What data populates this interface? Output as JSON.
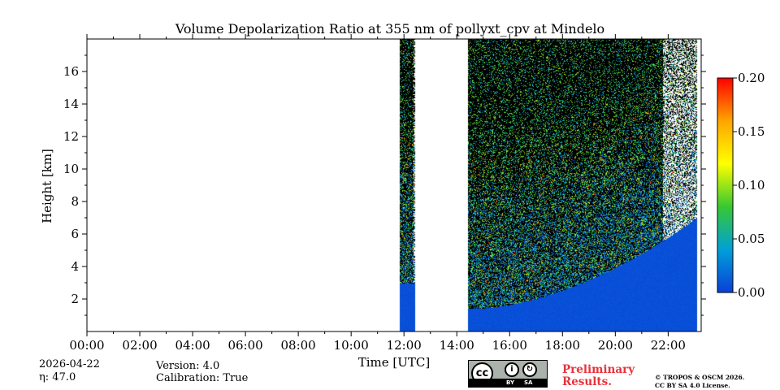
{
  "chart_data": {
    "type": "heatmap",
    "title": "Volume Depolarization Ratio at 355 nm of pollyxt_cpv at Mindelo",
    "xlabel": "Time [UTC]",
    "ylabel": "Height [km]",
    "xlim_hours": [
      0,
      23.25
    ],
    "ylim_km": [
      0,
      18
    ],
    "x_ticks": [
      {
        "value": 0,
        "label": "00:00"
      },
      {
        "value": 2,
        "label": "02:00"
      },
      {
        "value": 4,
        "label": "04:00"
      },
      {
        "value": 6,
        "label": "06:00"
      },
      {
        "value": 8,
        "label": "08:00"
      },
      {
        "value": 10,
        "label": "10:00"
      },
      {
        "value": 12,
        "label": "12:00"
      },
      {
        "value": 14,
        "label": "14:00"
      },
      {
        "value": 16,
        "label": "16:00"
      },
      {
        "value": 18,
        "label": "18:00"
      },
      {
        "value": 20,
        "label": "20:00"
      },
      {
        "value": 22,
        "label": "22:00"
      }
    ],
    "y_ticks": [
      {
        "value": 2,
        "label": "2"
      },
      {
        "value": 4,
        "label": "4"
      },
      {
        "value": 6,
        "label": "6"
      },
      {
        "value": 8,
        "label": "8"
      },
      {
        "value": 10,
        "label": "10"
      },
      {
        "value": 12,
        "label": "12"
      },
      {
        "value": 14,
        "label": "14"
      },
      {
        "value": 16,
        "label": "16"
      }
    ],
    "colorbar": {
      "range": [
        0.0,
        0.2
      ],
      "ticks": [
        {
          "value": 0.0,
          "label": "0.00"
        },
        {
          "value": 0.05,
          "label": "0.05"
        },
        {
          "value": 0.1,
          "label": "0.10"
        },
        {
          "value": 0.15,
          "label": "0.15"
        },
        {
          "value": 0.2,
          "label": "0.20"
        }
      ],
      "colors": [
        "#0a3fd8",
        "#00a0d8",
        "#37c832",
        "#ffff00",
        "#ffa500",
        "#ff0000"
      ]
    },
    "data_segments": [
      {
        "start_hour": 11.83,
        "end_hour": 12.42,
        "clean_top_km": 3.0,
        "noise_top_km": 18
      },
      {
        "start_hour": 14.42,
        "end_hour": 23.1,
        "clean_top_km_start": 1.4,
        "clean_top_km_end": 7.0,
        "noise_top_km": 18
      }
    ],
    "background_value": 0.0
  },
  "footer": {
    "date": "2026-04-22",
    "eta_label": "η: 47.0",
    "version": "Version: 4.0",
    "calibration": "Calibration: True",
    "preliminary_line1": "Preliminary",
    "preliminary_line2": "Results.",
    "copyright_line1": "© TROPOS & OSCM 2026.",
    "copyright_line2": "CC BY SA 4.0 License.",
    "license_by": "BY",
    "license_sa": "SA",
    "license_cc": "cc"
  }
}
